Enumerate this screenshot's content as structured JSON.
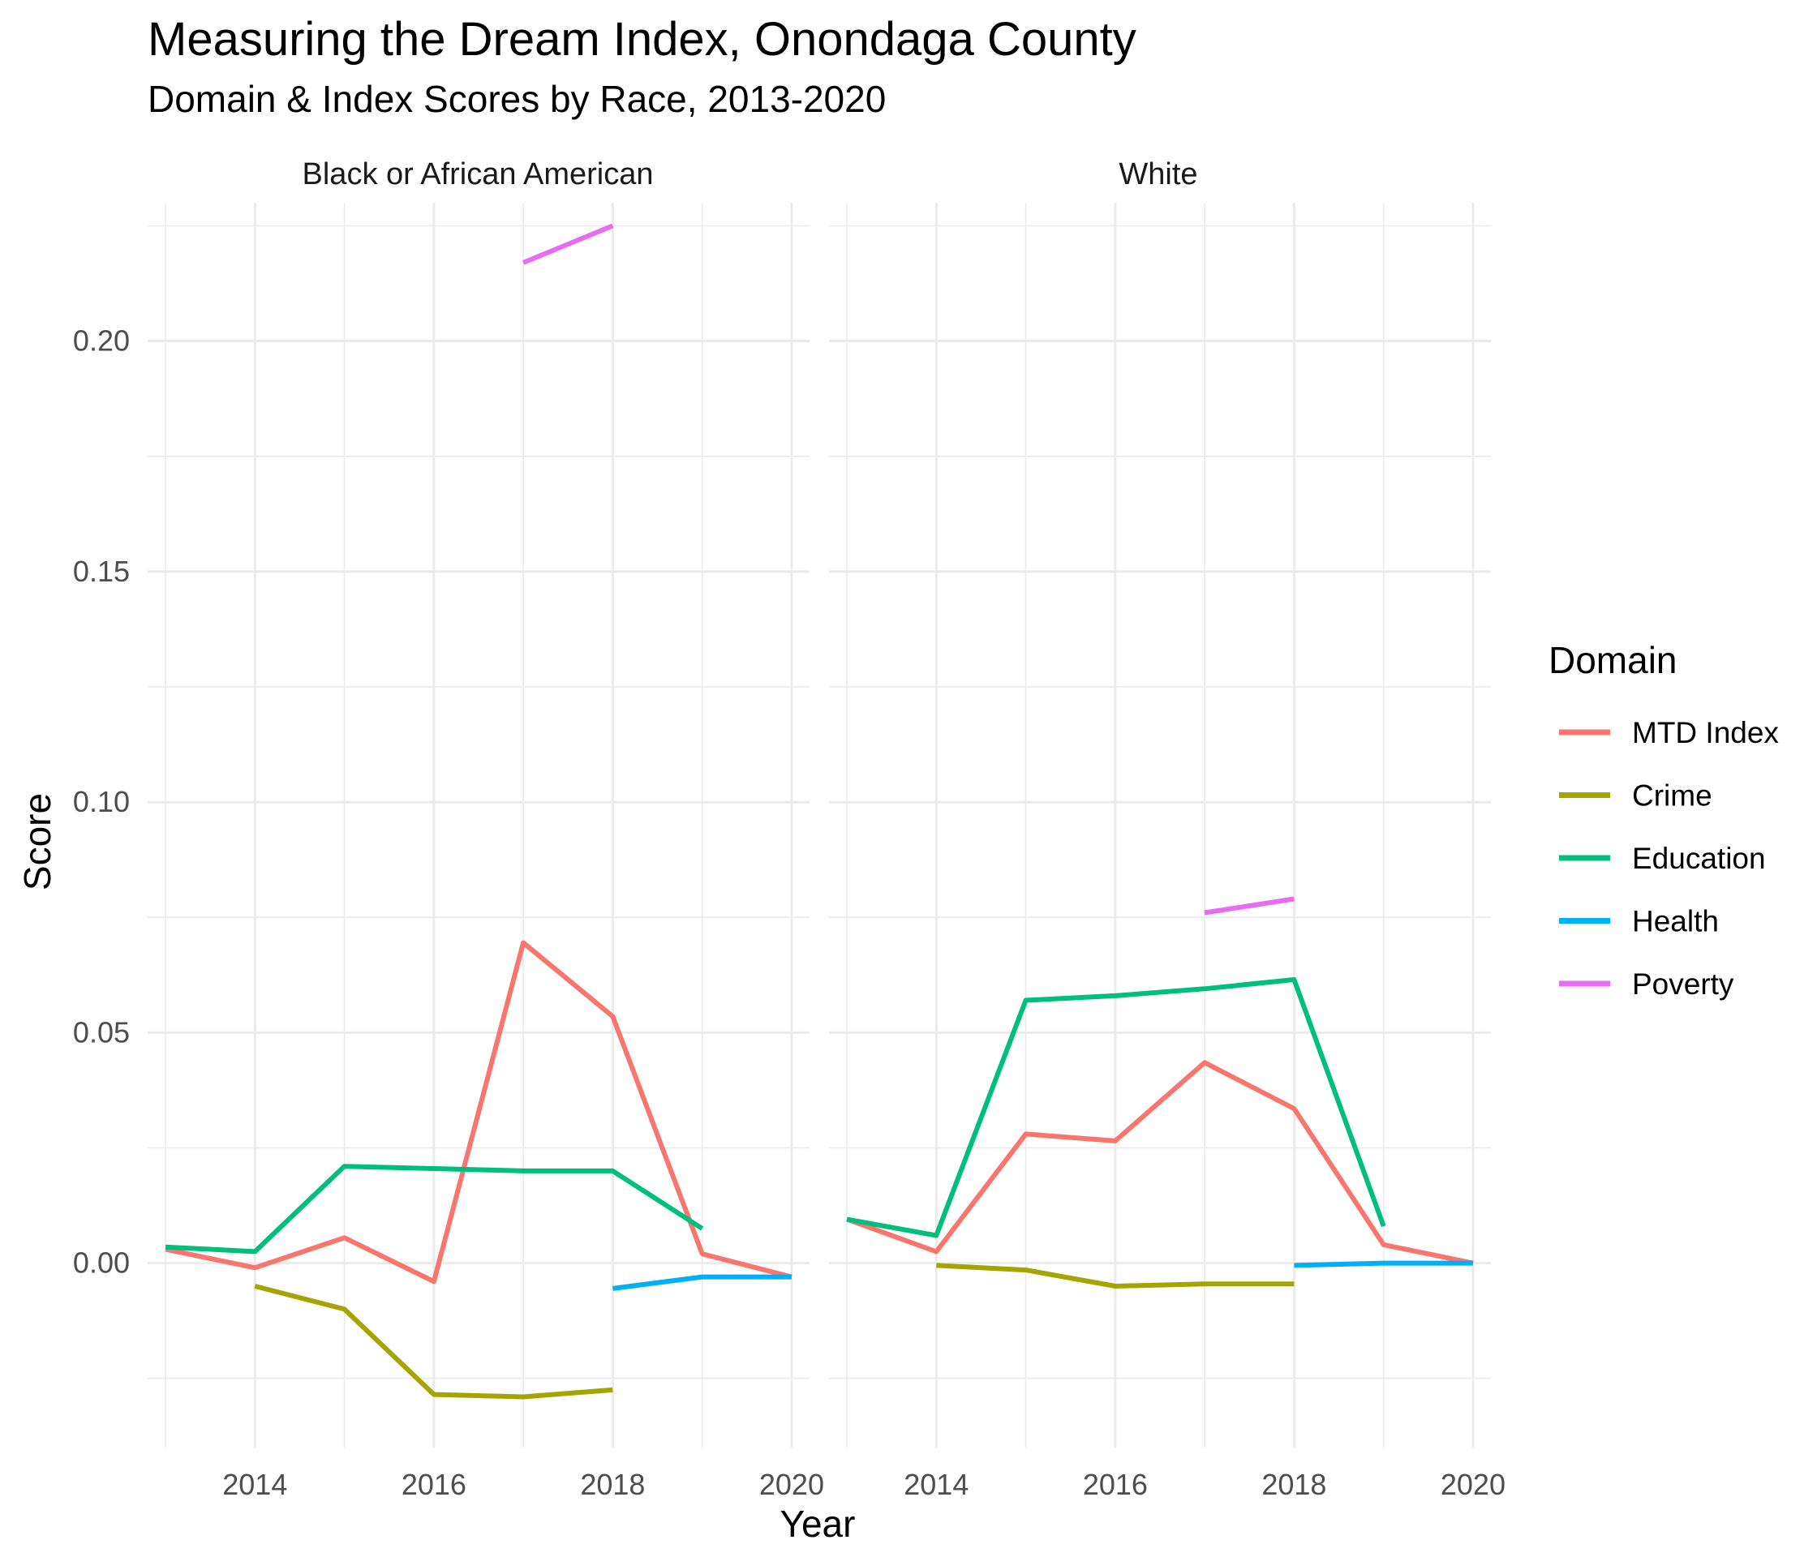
{
  "chart_data": {
    "type": "line",
    "title": "Measuring the Dream Index, Onondaga County",
    "subtitle": "Domain & Index Scores by Race, 2013-2020",
    "xlabel": "Year",
    "ylabel": "Score",
    "xlim": [
      2012.8,
      2020.2
    ],
    "ylim": [
      -0.04,
      0.23
    ],
    "x_ticks": [
      2014,
      2016,
      2018,
      2020
    ],
    "y_ticks": [
      0.0,
      0.05,
      0.1,
      0.15,
      0.2
    ],
    "y_tick_labels": [
      "0.00",
      "0.05",
      "0.10",
      "0.15",
      "0.20"
    ],
    "grid": true,
    "legend": {
      "title": "Domain",
      "position": "right"
    },
    "series_colors": {
      "MTD Index": "#F8766D",
      "Crime": "#A3A500",
      "Education": "#00BF7D",
      "Health": "#00B0F6",
      "Poverty": "#E76BF3"
    },
    "panels": [
      {
        "label": "Black or African American",
        "series": [
          {
            "name": "MTD Index",
            "x": [
              2013,
              2014,
              2015,
              2016,
              2017,
              2018,
              2019,
              2020
            ],
            "y": [
              0.003,
              -0.001,
              0.0055,
              -0.004,
              0.0695,
              0.0535,
              0.002,
              -0.003
            ]
          },
          {
            "name": "Crime",
            "x": [
              2014,
              2015,
              2016,
              2017,
              2018
            ],
            "y": [
              -0.005,
              -0.01,
              -0.0285,
              -0.029,
              -0.0275
            ]
          },
          {
            "name": "Education",
            "x": [
              2013,
              2014,
              2015,
              2016,
              2017,
              2018,
              2019
            ],
            "y": [
              0.0035,
              0.0025,
              0.021,
              0.0205,
              0.02,
              0.02,
              0.0075
            ]
          },
          {
            "name": "Health",
            "x": [
              2018,
              2019,
              2020
            ],
            "y": [
              -0.0055,
              -0.003,
              -0.003
            ]
          },
          {
            "name": "Poverty",
            "x": [
              2017,
              2018
            ],
            "y": [
              0.217,
              0.225
            ]
          }
        ]
      },
      {
        "label": "White",
        "series": [
          {
            "name": "MTD Index",
            "x": [
              2013,
              2014,
              2015,
              2016,
              2017,
              2018,
              2019,
              2020
            ],
            "y": [
              0.0095,
              0.0025,
              0.028,
              0.0265,
              0.0435,
              0.0335,
              0.004,
              0.0
            ]
          },
          {
            "name": "Crime",
            "x": [
              2014,
              2015,
              2016,
              2017,
              2018
            ],
            "y": [
              -0.0005,
              -0.0015,
              -0.005,
              -0.0045,
              -0.0045
            ]
          },
          {
            "name": "Education",
            "x": [
              2013,
              2014,
              2015,
              2016,
              2017,
              2018,
              2019
            ],
            "y": [
              0.0095,
              0.006,
              0.057,
              0.058,
              0.0595,
              0.0615,
              0.008
            ]
          },
          {
            "name": "Health",
            "x": [
              2018,
              2019,
              2020
            ],
            "y": [
              -0.0005,
              0.0,
              0.0
            ]
          },
          {
            "name": "Poverty",
            "x": [
              2017,
              2018
            ],
            "y": [
              0.076,
              0.079
            ]
          }
        ]
      }
    ]
  }
}
